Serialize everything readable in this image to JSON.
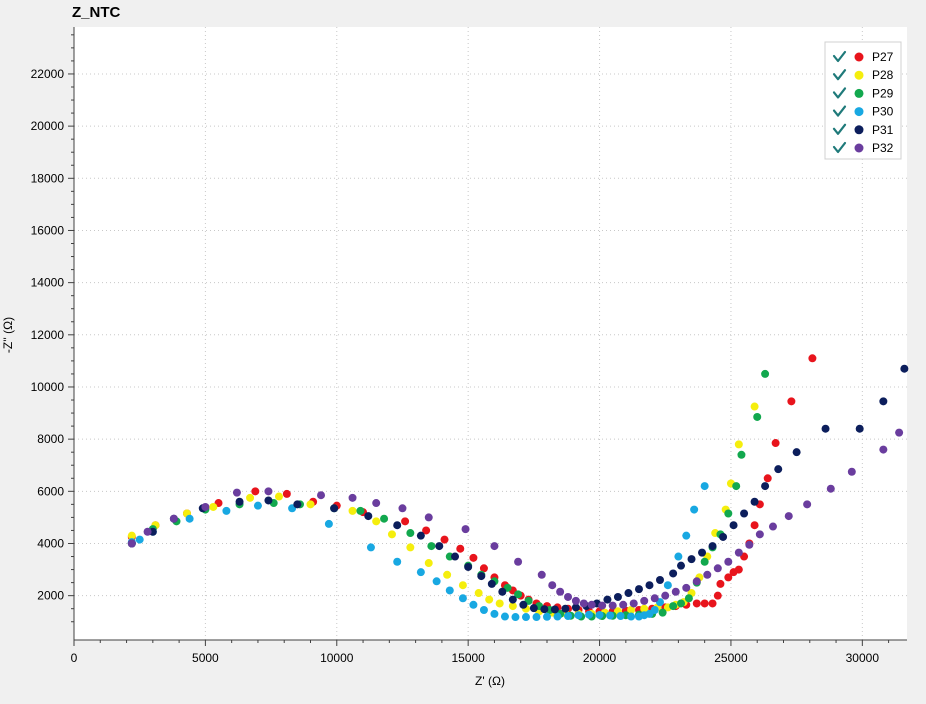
{
  "chart_data": {
    "type": "scatter",
    "title": "Z_NTC",
    "xlabel": "Z' (Ω)",
    "ylabel": "-Z'' (Ω)",
    "xlim": [
      0,
      31700
    ],
    "ylim": [
      300,
      23800
    ],
    "x_ticks": [
      0,
      5000,
      10000,
      15000,
      20000,
      25000,
      30000
    ],
    "x_tick_labels": [
      "0",
      "5000",
      "10000",
      "15000",
      "20000",
      "25000",
      "30000"
    ],
    "y_ticks": [
      2000,
      4000,
      6000,
      8000,
      10000,
      12000,
      14000,
      16000,
      18000,
      20000,
      22000
    ],
    "y_tick_labels": [
      "2000",
      "4000",
      "6000",
      "8000",
      "10000",
      "12000",
      "14000",
      "16000",
      "18000",
      "20000",
      "22000"
    ],
    "grid": true,
    "legend_position": "top-right",
    "series": [
      {
        "name": "P27",
        "color": "#e8141c",
        "points": [
          [
            2200,
            4250
          ],
          [
            3100,
            4700
          ],
          [
            4300,
            5150
          ],
          [
            5500,
            5550
          ],
          [
            6900,
            6000
          ],
          [
            8100,
            5900
          ],
          [
            9100,
            5600
          ],
          [
            10000,
            5450
          ],
          [
            11000,
            5200
          ],
          [
            12600,
            4850
          ],
          [
            13400,
            4500
          ],
          [
            14100,
            4150
          ],
          [
            14700,
            3800
          ],
          [
            15200,
            3450
          ],
          [
            15600,
            3050
          ],
          [
            16000,
            2700
          ],
          [
            16400,
            2400
          ],
          [
            16700,
            2200
          ],
          [
            17000,
            2000
          ],
          [
            17300,
            1850
          ],
          [
            17600,
            1700
          ],
          [
            18000,
            1600
          ],
          [
            18400,
            1550
          ],
          [
            18800,
            1500
          ],
          [
            19200,
            1450
          ],
          [
            19600,
            1400
          ],
          [
            20000,
            1400
          ],
          [
            20500,
            1400
          ],
          [
            21000,
            1420
          ],
          [
            21500,
            1450
          ],
          [
            22000,
            1500
          ],
          [
            22500,
            1550
          ],
          [
            22900,
            1600
          ],
          [
            23300,
            1650
          ],
          [
            23700,
            1700
          ],
          [
            24000,
            1700
          ],
          [
            24300,
            1700
          ],
          [
            24500,
            2000
          ],
          [
            24600,
            2450
          ],
          [
            24900,
            2700
          ],
          [
            25100,
            2900
          ],
          [
            25300,
            3000
          ],
          [
            25500,
            3500
          ],
          [
            25700,
            4000
          ],
          [
            25900,
            4700
          ],
          [
            26100,
            5500
          ],
          [
            26400,
            6500
          ],
          [
            26700,
            7850
          ],
          [
            27300,
            9450
          ],
          [
            28100,
            11100
          ]
        ]
      },
      {
        "name": "P28",
        "color": "#f5ee0d",
        "points": [
          [
            2200,
            4300
          ],
          [
            3100,
            4700
          ],
          [
            4300,
            5150
          ],
          [
            5300,
            5400
          ],
          [
            6700,
            5750
          ],
          [
            7800,
            5800
          ],
          [
            9000,
            5500
          ],
          [
            10600,
            5250
          ],
          [
            11500,
            4850
          ],
          [
            12100,
            4350
          ],
          [
            12800,
            3850
          ],
          [
            13500,
            3250
          ],
          [
            14200,
            2800
          ],
          [
            14800,
            2400
          ],
          [
            15400,
            2100
          ],
          [
            15800,
            1850
          ],
          [
            16200,
            1700
          ],
          [
            16700,
            1600
          ],
          [
            17200,
            1500
          ],
          [
            17700,
            1400
          ],
          [
            18200,
            1350
          ],
          [
            18700,
            1320
          ],
          [
            19200,
            1300
          ],
          [
            19700,
            1300
          ],
          [
            20200,
            1350
          ],
          [
            20700,
            1400
          ],
          [
            21200,
            1450
          ],
          [
            21700,
            1500
          ],
          [
            22200,
            1550
          ],
          [
            22600,
            1550
          ],
          [
            22900,
            1650
          ],
          [
            23200,
            1750
          ],
          [
            23500,
            2100
          ],
          [
            23800,
            2700
          ],
          [
            24100,
            3500
          ],
          [
            24400,
            4400
          ],
          [
            24800,
            5300
          ],
          [
            25000,
            6300
          ],
          [
            25300,
            7800
          ],
          [
            25900,
            9250
          ]
        ]
      },
      {
        "name": "P29",
        "color": "#12a84e",
        "points": [
          [
            2200,
            4000
          ],
          [
            3000,
            4550
          ],
          [
            3900,
            4850
          ],
          [
            5000,
            5300
          ],
          [
            6300,
            5500
          ],
          [
            7600,
            5550
          ],
          [
            8600,
            5500
          ],
          [
            9900,
            5350
          ],
          [
            10900,
            5250
          ],
          [
            11800,
            4950
          ],
          [
            12800,
            4400
          ],
          [
            13600,
            3900
          ],
          [
            14300,
            3500
          ],
          [
            15000,
            3150
          ],
          [
            15500,
            2800
          ],
          [
            16000,
            2550
          ],
          [
            16500,
            2300
          ],
          [
            16900,
            2050
          ],
          [
            17300,
            1800
          ],
          [
            17700,
            1600
          ],
          [
            18100,
            1450
          ],
          [
            18500,
            1300
          ],
          [
            18900,
            1230
          ],
          [
            19300,
            1200
          ],
          [
            19700,
            1200
          ],
          [
            20100,
            1220
          ],
          [
            20500,
            1230
          ],
          [
            21000,
            1250
          ],
          [
            21500,
            1270
          ],
          [
            22000,
            1300
          ],
          [
            22400,
            1350
          ],
          [
            22800,
            1600
          ],
          [
            23100,
            1700
          ],
          [
            23400,
            1900
          ],
          [
            23700,
            2500
          ],
          [
            24000,
            3300
          ],
          [
            24300,
            3850
          ],
          [
            24600,
            4350
          ],
          [
            24900,
            5150
          ],
          [
            25200,
            6200
          ],
          [
            25400,
            7400
          ],
          [
            26000,
            8850
          ],
          [
            26300,
            10500
          ]
        ]
      },
      {
        "name": "P30",
        "color": "#18a8e2",
        "points": [
          [
            2200,
            4050
          ],
          [
            2500,
            4150
          ],
          [
            3000,
            4450
          ],
          [
            4400,
            4950
          ],
          [
            5800,
            5250
          ],
          [
            7000,
            5450
          ],
          [
            8300,
            5350
          ],
          [
            9700,
            4750
          ],
          [
            11300,
            3850
          ],
          [
            12300,
            3300
          ],
          [
            13200,
            2900
          ],
          [
            13800,
            2550
          ],
          [
            14300,
            2200
          ],
          [
            14800,
            1900
          ],
          [
            15200,
            1650
          ],
          [
            15600,
            1450
          ],
          [
            16000,
            1300
          ],
          [
            16400,
            1200
          ],
          [
            16800,
            1180
          ],
          [
            17200,
            1180
          ],
          [
            17600,
            1180
          ],
          [
            18000,
            1190
          ],
          [
            18400,
            1200
          ],
          [
            18800,
            1220
          ],
          [
            19200,
            1250
          ],
          [
            19600,
            1270
          ],
          [
            20000,
            1260
          ],
          [
            20400,
            1240
          ],
          [
            20800,
            1220
          ],
          [
            21200,
            1200
          ],
          [
            21500,
            1200
          ],
          [
            21700,
            1250
          ],
          [
            21900,
            1300
          ],
          [
            22100,
            1450
          ],
          [
            22300,
            1750
          ],
          [
            22600,
            2400
          ],
          [
            23000,
            3500
          ],
          [
            23300,
            4300
          ],
          [
            23600,
            5300
          ],
          [
            24000,
            6200
          ]
        ]
      },
      {
        "name": "P31",
        "color": "#0c1e5c",
        "points": [
          [
            2200,
            4000
          ],
          [
            3000,
            4450
          ],
          [
            3800,
            4950
          ],
          [
            4900,
            5350
          ],
          [
            6300,
            5600
          ],
          [
            7400,
            5650
          ],
          [
            8500,
            5500
          ],
          [
            9900,
            5350
          ],
          [
            11200,
            5050
          ],
          [
            12300,
            4700
          ],
          [
            13200,
            4300
          ],
          [
            13900,
            3900
          ],
          [
            14500,
            3500
          ],
          [
            15000,
            3100
          ],
          [
            15500,
            2750
          ],
          [
            15900,
            2450
          ],
          [
            16300,
            2150
          ],
          [
            16700,
            1850
          ],
          [
            17100,
            1650
          ],
          [
            17500,
            1520
          ],
          [
            17900,
            1480
          ],
          [
            18300,
            1470
          ],
          [
            18700,
            1500
          ],
          [
            19100,
            1550
          ],
          [
            19500,
            1600
          ],
          [
            19900,
            1700
          ],
          [
            20300,
            1850
          ],
          [
            20700,
            1950
          ],
          [
            21100,
            2100
          ],
          [
            21500,
            2250
          ],
          [
            21900,
            2400
          ],
          [
            22300,
            2600
          ],
          [
            22800,
            2850
          ],
          [
            23100,
            3150
          ],
          [
            23500,
            3400
          ],
          [
            23900,
            3650
          ],
          [
            24300,
            3900
          ],
          [
            24700,
            4250
          ],
          [
            25100,
            4700
          ],
          [
            25500,
            5150
          ],
          [
            25900,
            5600
          ],
          [
            26300,
            6200
          ],
          [
            26800,
            6850
          ],
          [
            27500,
            7500
          ],
          [
            28600,
            8400
          ],
          [
            29900,
            8400
          ],
          [
            30800,
            9450
          ],
          [
            31600,
            10700
          ]
        ]
      },
      {
        "name": "P32",
        "color": "#6a3d9e",
        "points": [
          [
            2200,
            4000
          ],
          [
            2800,
            4450
          ],
          [
            3800,
            4950
          ],
          [
            5000,
            5400
          ],
          [
            6200,
            5950
          ],
          [
            7400,
            6000
          ],
          [
            9400,
            5850
          ],
          [
            10600,
            5750
          ],
          [
            11500,
            5550
          ],
          [
            12500,
            5350
          ],
          [
            13500,
            5000
          ],
          [
            14900,
            4550
          ],
          [
            16000,
            3900
          ],
          [
            16900,
            3300
          ],
          [
            17800,
            2800
          ],
          [
            18200,
            2400
          ],
          [
            18500,
            2150
          ],
          [
            18800,
            1950
          ],
          [
            19100,
            1800
          ],
          [
            19400,
            1700
          ],
          [
            19700,
            1650
          ],
          [
            20100,
            1620
          ],
          [
            20500,
            1620
          ],
          [
            20900,
            1650
          ],
          [
            21300,
            1700
          ],
          [
            21700,
            1800
          ],
          [
            22100,
            1900
          ],
          [
            22500,
            2000
          ],
          [
            22900,
            2150
          ],
          [
            23300,
            2300
          ],
          [
            23700,
            2550
          ],
          [
            24100,
            2800
          ],
          [
            24500,
            3050
          ],
          [
            24900,
            3300
          ],
          [
            25300,
            3650
          ],
          [
            25700,
            3950
          ],
          [
            26100,
            4350
          ],
          [
            26600,
            4650
          ],
          [
            27200,
            5050
          ],
          [
            27900,
            5500
          ],
          [
            28800,
            6100
          ],
          [
            29600,
            6750
          ],
          [
            30800,
            7600
          ],
          [
            31400,
            8250
          ]
        ]
      }
    ]
  }
}
